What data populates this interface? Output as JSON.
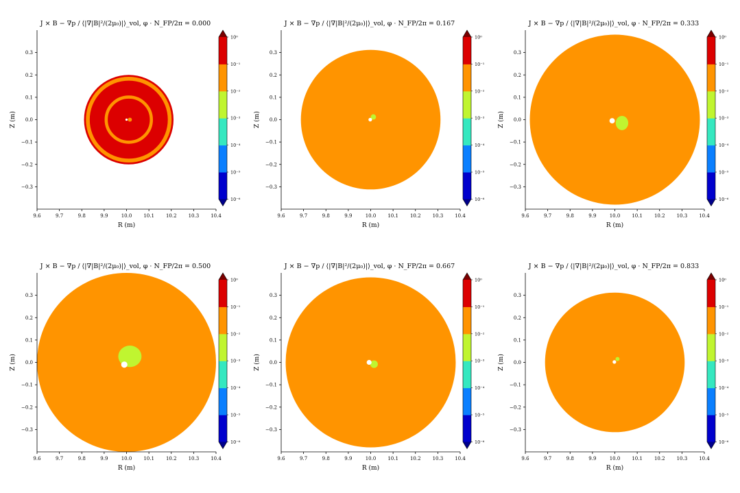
{
  "colorbar": {
    "colors": [
      "#0000cd",
      "#0a7fff",
      "#35e8c0",
      "#c0f530",
      "#ff9400",
      "#dc0000"
    ],
    "under_color": "#00008b",
    "over_color": "#7a0000",
    "tick_labels": [
      "10⁻⁶",
      "10⁻⁵",
      "10⁻⁴",
      "10⁻³",
      "10⁻²",
      "10⁻¹",
      "10⁰"
    ]
  },
  "chart_data": [
    {
      "type": "heatmap",
      "title": "J × B − ∇p / ⟨|∇|B|²/(2μ₀)|⟩_vol, φ · N_FP/2π = 0.000",
      "xlabel": "R (m)",
      "ylabel": "Z (m)",
      "xlim": [
        9.6,
        10.4
      ],
      "ylim": [
        -0.4,
        0.4
      ],
      "xticks": [
        "9.6",
        "9.7",
        "9.8",
        "9.9",
        "10.0",
        "10.1",
        "10.2",
        "10.3",
        "10.4"
      ],
      "yticks": [
        "−0.3",
        "−0.2",
        "−0.1",
        "0.0",
        "0.1",
        "0.2",
        "0.3"
      ],
      "regions": [
        {
          "shape": "circle",
          "center": [
            10.01,
            0.0
          ],
          "r": 0.2,
          "level": "10⁻¹ to 10⁰"
        },
        {
          "shape": "ring",
          "center": [
            10.01,
            0.0
          ],
          "r": 0.183,
          "width": 0.017,
          "level": "10⁻² to 10⁻¹"
        },
        {
          "shape": "ring",
          "center": [
            10.01,
            0.0
          ],
          "r": 0.101,
          "width": 0.014,
          "level": "10⁻² to 10⁻¹"
        },
        {
          "shape": "circle",
          "center": [
            10.015,
            0.0
          ],
          "r": 0.009,
          "level": "10⁻² to 10⁻¹"
        },
        {
          "shape": "circle",
          "center": [
            10.0,
            0.0
          ],
          "r": 0.005,
          "level": "below 10⁻⁶"
        }
      ]
    },
    {
      "type": "heatmap",
      "title": "J × B − ∇p / ⟨|∇|B|²/(2μ₀)|⟩_vol, φ · N_FP/2π = 0.167",
      "xlabel": "R (m)",
      "ylabel": "Z (m)",
      "xlim": [
        9.6,
        10.4
      ],
      "ylim": [
        -0.4,
        0.4
      ],
      "xticks": [
        "9.6",
        "9.7",
        "9.8",
        "9.9",
        "10.0",
        "10.1",
        "10.2",
        "10.3",
        "10.4"
      ],
      "yticks": [
        "−0.3",
        "−0.2",
        "−0.1",
        "0.0",
        "0.1",
        "0.2",
        "0.3"
      ],
      "regions": [
        {
          "shape": "circle",
          "center": [
            10.0,
            0.0
          ],
          "r": 0.312,
          "level": "10⁻² to 10⁻¹"
        },
        {
          "shape": "circle",
          "center": [
            10.012,
            0.012
          ],
          "r": 0.012,
          "level": "10⁻³ to 10⁻²"
        },
        {
          "shape": "circle",
          "center": [
            9.998,
            0.0
          ],
          "r": 0.008,
          "level": "below 10⁻⁶"
        }
      ]
    },
    {
      "type": "heatmap",
      "title": "J × B − ∇p / ⟨|∇|B|²/(2μ₀)|⟩_vol, φ · N_FP/2π = 0.333",
      "xlabel": "R (m)",
      "ylabel": "Z (m)",
      "xlim": [
        9.6,
        10.4
      ],
      "ylim": [
        -0.4,
        0.4
      ],
      "xticks": [
        "9.6",
        "9.7",
        "9.8",
        "9.9",
        "10.0",
        "10.1",
        "10.2",
        "10.3",
        "10.4"
      ],
      "yticks": [
        "−0.3",
        "−0.2",
        "−0.1",
        "0.0",
        "0.1",
        "0.2",
        "0.3"
      ],
      "regions": [
        {
          "shape": "circle",
          "center": [
            10.0,
            0.0
          ],
          "r": 0.38,
          "level": "10⁻² to 10⁻¹"
        },
        {
          "shape": "ellipse",
          "center": [
            10.032,
            -0.015
          ],
          "rx": 0.028,
          "ry": 0.032,
          "level": "10⁻³ to 10⁻²"
        },
        {
          "shape": "circle",
          "center": [
            9.988,
            -0.005
          ],
          "r": 0.012,
          "level": "below 10⁻⁶"
        }
      ]
    },
    {
      "type": "heatmap",
      "title": "J × B − ∇p / ⟨|∇|B|²/(2μ₀)|⟩_vol, φ · N_FP/2π = 0.500",
      "xlabel": "R (m)",
      "ylabel": "Z (m)",
      "xlim": [
        9.6,
        10.4
      ],
      "ylim": [
        -0.4,
        0.4
      ],
      "xticks": [
        "9.6",
        "9.7",
        "9.8",
        "9.9",
        "10.0",
        "10.1",
        "10.2",
        "10.3",
        "10.4"
      ],
      "yticks": [
        "−0.3",
        "−0.2",
        "−0.1",
        "0.0",
        "0.1",
        "0.2",
        "0.3"
      ],
      "regions": [
        {
          "shape": "circle",
          "center": [
            10.0,
            0.0
          ],
          "r": 0.4,
          "level": "10⁻² to 10⁻¹"
        },
        {
          "shape": "ellipse",
          "center": [
            10.015,
            0.027
          ],
          "rx": 0.052,
          "ry": 0.048,
          "level": "10⁻³ to 10⁻²"
        },
        {
          "shape": "circle",
          "center": [
            9.99,
            -0.01
          ],
          "r": 0.014,
          "level": "below 10⁻⁶"
        }
      ]
    },
    {
      "type": "heatmap",
      "title": "J × B − ∇p / ⟨|∇|B|²/(2μ₀)|⟩_vol, φ · N_FP/2π = 0.667",
      "xlabel": "R (m)",
      "ylabel": "Z (m)",
      "xlim": [
        9.6,
        10.4
      ],
      "ylim": [
        -0.4,
        0.4
      ],
      "xticks": [
        "9.6",
        "9.7",
        "9.8",
        "9.9",
        "10.0",
        "10.1",
        "10.2",
        "10.3",
        "10.4"
      ],
      "yticks": [
        "−0.3",
        "−0.2",
        "−0.1",
        "0.0",
        "0.1",
        "0.2",
        "0.3"
      ],
      "regions": [
        {
          "shape": "circle",
          "center": [
            10.0,
            0.0
          ],
          "r": 0.38,
          "level": "10⁻² to 10⁻¹"
        },
        {
          "shape": "circle",
          "center": [
            10.015,
            -0.008
          ],
          "r": 0.017,
          "level": "10⁻³ to 10⁻²"
        },
        {
          "shape": "circle",
          "center": [
            9.993,
            0.0
          ],
          "r": 0.011,
          "level": "below 10⁻⁶"
        }
      ]
    },
    {
      "type": "heatmap",
      "title": "J × B − ∇p / ⟨|∇|B|²/(2μ₀)|⟩_vol, φ · N_FP/2π = 0.833",
      "xlabel": "R (m)",
      "ylabel": "Z (m)",
      "xlim": [
        9.6,
        10.4
      ],
      "ylim": [
        -0.4,
        0.4
      ],
      "xticks": [
        "9.6",
        "9.7",
        "9.8",
        "9.9",
        "10.0",
        "10.1",
        "10.2",
        "10.3",
        "10.4"
      ],
      "yticks": [
        "−0.3",
        "−0.2",
        "−0.1",
        "0.0",
        "0.1",
        "0.2",
        "0.3"
      ],
      "regions": [
        {
          "shape": "circle",
          "center": [
            10.0,
            0.0
          ],
          "r": 0.312,
          "level": "10⁻² to 10⁻¹"
        },
        {
          "shape": "circle",
          "center": [
            10.012,
            0.015
          ],
          "r": 0.009,
          "level": "10⁻³ to 10⁻²"
        },
        {
          "shape": "circle",
          "center": [
            9.998,
            0.002
          ],
          "r": 0.008,
          "level": "below 10⁻⁶"
        }
      ]
    }
  ]
}
